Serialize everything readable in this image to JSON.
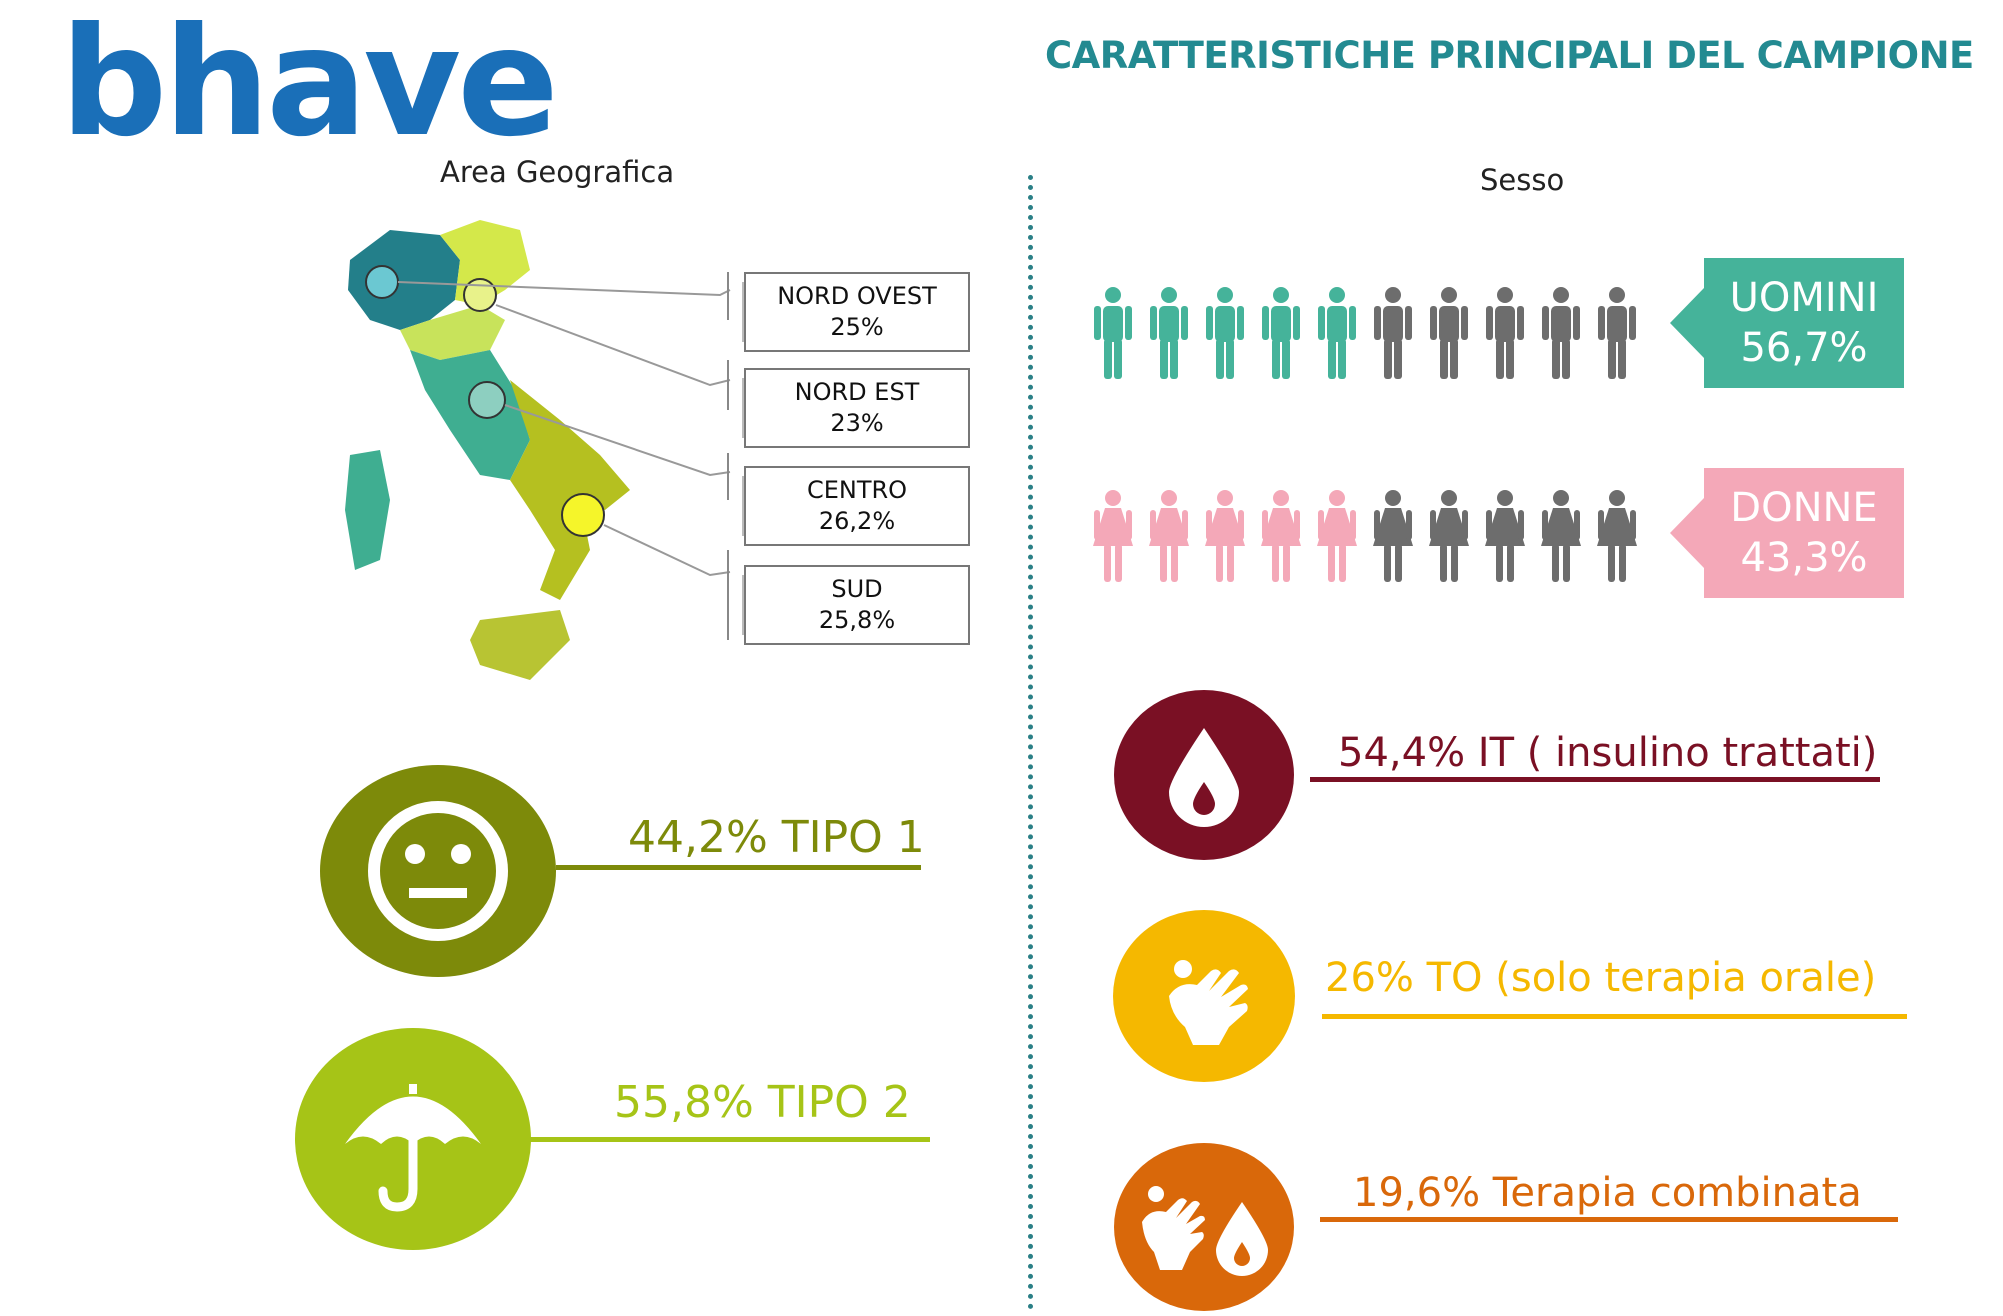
{
  "brand": {
    "logo_text": "bhave"
  },
  "title": "CARATTERISTICHE PRINCIPALI DEL CAMPIONE",
  "geo": {
    "heading": "Area Geografica",
    "regions": [
      {
        "name": "NORD OVEST",
        "value": "25%"
      },
      {
        "name": "NORD EST",
        "value": "23%"
      },
      {
        "name": "CENTRO",
        "value": "26,2%"
      },
      {
        "name": "SUD",
        "value": "25,8%"
      }
    ]
  },
  "sex": {
    "heading": "Sesso",
    "men": {
      "label": "UOMINI",
      "value": "56,7%",
      "color": "#45b39a"
    },
    "women": {
      "label": "DONNE",
      "value": "43,3%",
      "color": "#f4a8b8"
    }
  },
  "types": [
    {
      "text": "44,2% TIPO 1",
      "color": "#7d8a0a",
      "icon": "neutral-face-icon"
    },
    {
      "text": "55,8% TIPO 2",
      "color": "#a6c417",
      "icon": "umbrella-icon"
    }
  ],
  "therapy": [
    {
      "text": "54,4% IT ( insulino trattati)",
      "color": "#7a1024",
      "icon": "drop-icon"
    },
    {
      "text": "26% TO (solo terapia orale)",
      "color": "#f5b800",
      "icon": "hand-pill-icon"
    },
    {
      "text": "19,6% Terapia combinata",
      "color": "#d9680a",
      "icon": "hand-drop-icon"
    }
  ]
}
